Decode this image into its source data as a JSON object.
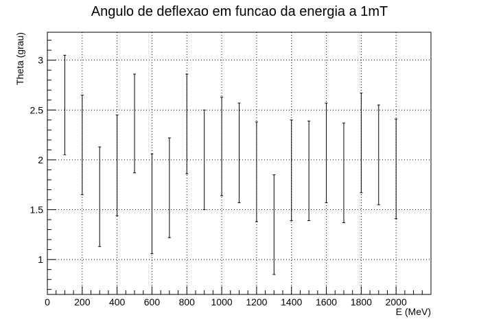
{
  "chart_data": {
    "type": "scatter",
    "title": "Angulo de deflexao em funcao da energia a 1mT",
    "xlabel": "E (MeV)",
    "ylabel": "Theta (grau)",
    "xlim": [
      0,
      2200
    ],
    "ylim": [
      0.65,
      3.28
    ],
    "grid": true,
    "x_ticks": [
      0,
      200,
      400,
      600,
      800,
      1000,
      1200,
      1400,
      1600,
      1800,
      2000
    ],
    "y_ticks": [
      1,
      1.5,
      2,
      2.5,
      3
    ],
    "x_tick_labels": [
      "0",
      "200",
      "400",
      "600",
      "800",
      "1000",
      "1200",
      "1400",
      "1600",
      "1800",
      "2000"
    ],
    "y_tick_labels": [
      "1",
      "1.5",
      "2",
      "2.5",
      "3"
    ],
    "series": [
      {
        "x": [
          100,
          200,
          300,
          400,
          500,
          600,
          700,
          800,
          900,
          1000,
          1100,
          1200,
          1300,
          1400,
          1500,
          1600,
          1700,
          1800,
          1900,
          2000
        ],
        "y_low": [
          2.05,
          1.65,
          1.13,
          1.44,
          1.87,
          1.06,
          1.22,
          1.86,
          1.5,
          1.64,
          1.57,
          1.38,
          0.85,
          1.39,
          1.39,
          1.57,
          1.37,
          1.67,
          1.55,
          1.41
        ],
        "y_high": [
          3.05,
          2.65,
          2.13,
          2.45,
          2.86,
          2.06,
          2.22,
          2.86,
          2.5,
          2.63,
          2.57,
          2.38,
          1.85,
          2.4,
          2.39,
          2.57,
          2.37,
          2.67,
          2.55,
          2.41
        ]
      }
    ]
  }
}
